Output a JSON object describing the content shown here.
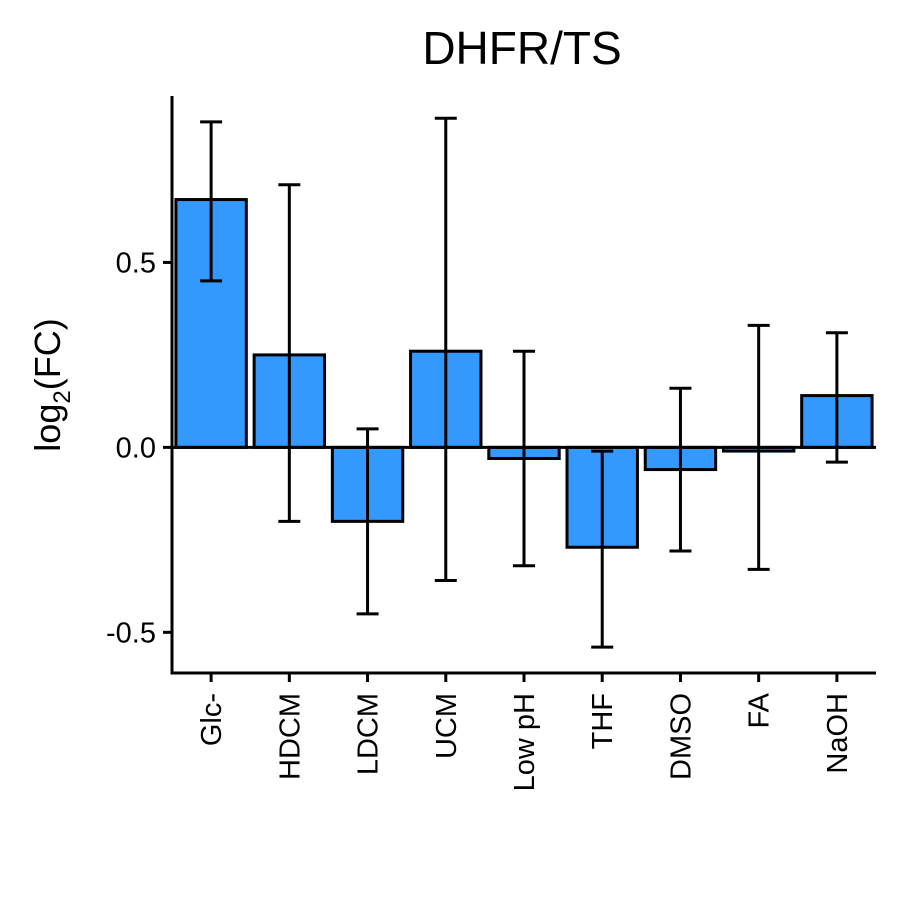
{
  "chart_data": {
    "type": "bar",
    "title": "DHFR/TS",
    "ylabel": {
      "base": "log",
      "subscript": "2",
      "suffix": "(FC)"
    },
    "xlabel": "",
    "categories": [
      "Glc-",
      "HDCM",
      "LDCM",
      "UCM",
      "Low pH",
      "THF",
      "DMSO",
      "FA",
      "NaOH"
    ],
    "values": [
      0.67,
      0.25,
      -0.2,
      0.26,
      -0.03,
      -0.27,
      -0.06,
      -0.01,
      0.14
    ],
    "error_low": [
      0.45,
      -0.2,
      -0.45,
      -0.36,
      -0.32,
      -0.54,
      -0.28,
      -0.33,
      -0.04
    ],
    "error_high": [
      0.88,
      0.71,
      0.05,
      0.89,
      0.26,
      -0.01,
      0.16,
      0.33,
      0.31
    ],
    "ylim": [
      -0.61,
      0.95
    ],
    "yticks": [
      -0.5,
      0.0,
      0.5
    ],
    "ytick_labels": [
      "-0.5",
      "0.0",
      "0.5"
    ],
    "bar_color": "#3399FF",
    "grid": false,
    "legend": "none"
  }
}
